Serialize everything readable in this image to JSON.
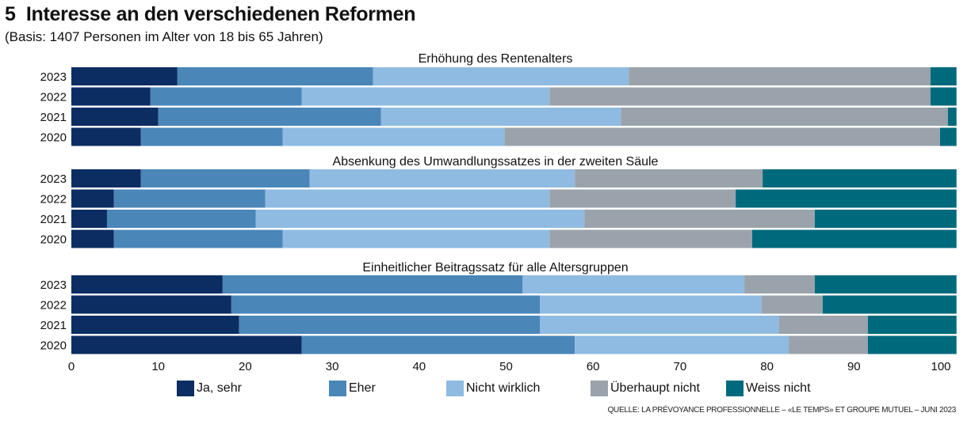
{
  "title": "5  Interesse an den verschiedenen Reformen",
  "subtitle": "(Basis: 1407 Personen im Alter von 18 bis 65 Jahren)",
  "source": "QUELLE: LA PRÉVOYANCE PROFESSIONNELLE – «LE TEMPS» ET GROUPE MUTUEL – JUNI 2023",
  "chart_data": {
    "type": "bar",
    "orientation": "horizontal",
    "stacked": true,
    "xlim": [
      0,
      100
    ],
    "xticks": [
      0,
      10,
      20,
      30,
      40,
      50,
      60,
      70,
      80,
      90,
      100
    ],
    "grid": false,
    "legend_position": "bottom",
    "series": [
      {
        "name": "Ja, sehr",
        "color": "#0c2d62"
      },
      {
        "name": "Eher",
        "color": "#4a86b8"
      },
      {
        "name": "Nicht wirklich",
        "color": "#8fbbe2"
      },
      {
        "name": "Überhaupt nicht",
        "color": "#9aa3ab"
      },
      {
        "name": "Weiss nicht",
        "color": "#006a7d"
      }
    ],
    "panels": [
      {
        "title": "Erhöhung des Rentenalters",
        "categories": [
          "2023",
          "2022",
          "2021",
          "2020"
        ],
        "values": [
          [
            12.2,
            22.5,
            29.4,
            34.7,
            3.0
          ],
          [
            9.1,
            17.4,
            28.5,
            43.8,
            3.0
          ],
          [
            10.0,
            25.6,
            27.6,
            37.6,
            1.0
          ],
          [
            8.0,
            16.3,
            25.5,
            50.1,
            1.9
          ]
        ]
      },
      {
        "title": "Absenkung des Umwandlungssatzes in der zweiten Säule",
        "categories": [
          "2023",
          "2022",
          "2021",
          "2020"
        ],
        "values": [
          [
            8.0,
            19.4,
            30.5,
            21.6,
            22.3
          ],
          [
            4.9,
            17.4,
            32.7,
            21.4,
            25.4
          ],
          [
            4.1,
            17.1,
            37.8,
            26.5,
            16.3
          ],
          [
            4.9,
            19.4,
            30.7,
            23.3,
            23.5
          ]
        ]
      },
      {
        "title": "Einheitlicher Beitragssatz für alle Altersgruppen",
        "categories": [
          "2023",
          "2022",
          "2021",
          "2020"
        ],
        "values": [
          [
            17.4,
            34.5,
            25.5,
            8.1,
            16.3
          ],
          [
            18.4,
            35.5,
            25.5,
            7.0,
            15.4
          ],
          [
            19.3,
            34.6,
            27.5,
            10.2,
            10.2
          ],
          [
            26.5,
            31.4,
            24.6,
            9.1,
            10.2
          ]
        ]
      }
    ]
  }
}
